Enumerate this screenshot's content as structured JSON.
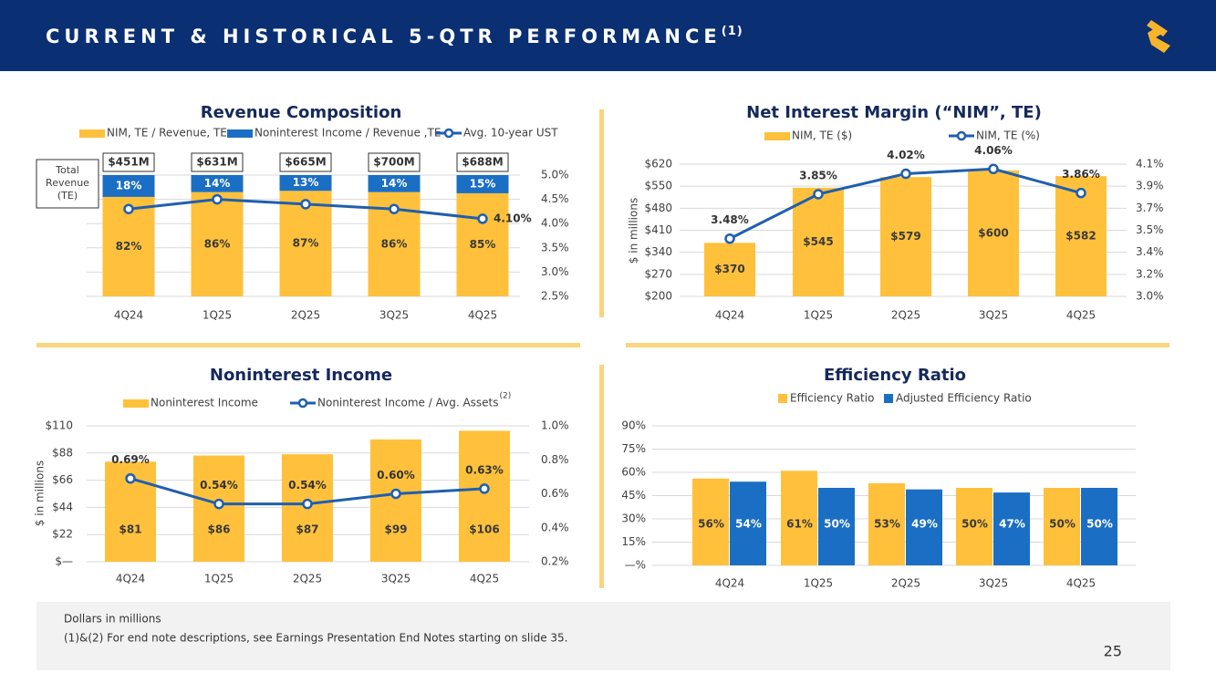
{
  "header": {
    "title": "CURRENT & HISTORICAL 5-QTR PERFORMANCE",
    "note": "(1)"
  },
  "chart_data": [
    {
      "type": "stacked_bar",
      "title": "Revenue Composition",
      "categories": [
        "4Q24",
        "1Q25",
        "2Q25",
        "3Q25",
        "4Q25"
      ],
      "ylim": [
        0,
        100
      ],
      "y2lim": [
        2.5,
        5.0
      ],
      "y2ticks": [
        {
          "value": 2.5,
          "label": "2.5%"
        },
        {
          "value": 3.0,
          "label": "3.0%"
        },
        {
          "value": 3.5,
          "label": "3.5%"
        },
        {
          "value": 4.0,
          "label": "4.0%"
        },
        {
          "value": 4.5,
          "label": "4.5%"
        },
        {
          "value": 5.0,
          "label": "5.0%"
        }
      ],
      "grid": true,
      "series": [
        {
          "name": "NIM, TE / Revenue, TE",
          "color": "#FFC13B",
          "values": [
            82,
            86,
            87,
            86,
            85
          ],
          "value_labels": [
            "82%",
            "86%",
            "87%",
            "86%",
            "85%"
          ]
        },
        {
          "name": "Noninterest Income / Revenue ,TE",
          "color": "#1A6FC4",
          "values": [
            18,
            14,
            13,
            14,
            15
          ],
          "value_labels": [
            "18%",
            "14%",
            "13%",
            "14%",
            "15%"
          ]
        },
        {
          "name": "Avg. 10-year UST",
          "color": "#1F5FAF",
          "type": "line",
          "axis": "y2",
          "values": [
            4.3,
            4.5,
            4.4,
            4.3,
            4.1
          ],
          "value_labels": [
            null,
            null,
            null,
            null,
            "4.10%"
          ]
        }
      ],
      "totals": {
        "label": [
          "Total",
          "Revenue",
          "(TE)"
        ],
        "values": [
          451,
          631,
          665,
          700,
          688
        ],
        "value_labels": [
          "$451M",
          "$631M",
          "$665M",
          "$700M",
          "$688M"
        ]
      }
    },
    {
      "type": "bar",
      "title": "Net Interest Margin (“NIM”, TE)",
      "ylabel": "$ in millions",
      "categories": [
        "4Q24",
        "1Q25",
        "2Q25",
        "3Q25",
        "4Q25"
      ],
      "ylim": [
        200,
        620
      ],
      "yticks": [
        {
          "value": 200,
          "label": "$200"
        },
        {
          "value": 270,
          "label": "$270"
        },
        {
          "value": 340,
          "label": "$340"
        },
        {
          "value": 410,
          "label": "$410"
        },
        {
          "value": 480,
          "label": "$480"
        },
        {
          "value": 550,
          "label": "$550"
        },
        {
          "value": 620,
          "label": "$620"
        }
      ],
      "y2lim": [
        3.0,
        4.1
      ],
      "y2ticks": [
        {
          "value": 3.0,
          "label": "3.0%"
        },
        {
          "value": 3.183,
          "label": "3.2%"
        },
        {
          "value": 3.367,
          "label": "3.4%"
        },
        {
          "value": 3.55,
          "label": "3.5%"
        },
        {
          "value": 3.733,
          "label": "3.7%"
        },
        {
          "value": 3.917,
          "label": "3.9%"
        },
        {
          "value": 4.1,
          "label": "4.1%"
        }
      ],
      "grid": true,
      "series": [
        {
          "name": "NIM, TE ($)",
          "color": "#FFC13B",
          "values": [
            370,
            545,
            579,
            600,
            582
          ],
          "value_labels": [
            "$370",
            "$545",
            "$579",
            "$600",
            "$582"
          ]
        },
        {
          "name": "NIM, TE (%)",
          "color": "#1F5FAF",
          "type": "line",
          "axis": "y2",
          "values": [
            3.48,
            3.85,
            4.02,
            4.06,
            3.86
          ],
          "value_labels": [
            "3.48%",
            "3.85%",
            "4.02%",
            "4.06%",
            "3.86%"
          ]
        }
      ]
    },
    {
      "type": "bar",
      "title": "Noninterest Income",
      "ylabel": "$ in millions",
      "categories": [
        "4Q24",
        "1Q25",
        "2Q25",
        "3Q25",
        "4Q25"
      ],
      "ylim": [
        0,
        110
      ],
      "yticks": [
        {
          "value": 0,
          "label": "$—"
        },
        {
          "value": 22,
          "label": "$22"
        },
        {
          "value": 44,
          "label": "$44"
        },
        {
          "value": 66,
          "label": "$66"
        },
        {
          "value": 88,
          "label": "$88"
        },
        {
          "value": 110,
          "label": "$110"
        }
      ],
      "y2lim": [
        0.2,
        1.0
      ],
      "y2ticks": [
        {
          "value": 0.2,
          "label": "0.2%"
        },
        {
          "value": 0.4,
          "label": "0.4%"
        },
        {
          "value": 0.6,
          "label": "0.6%"
        },
        {
          "value": 0.8,
          "label": "0.8%"
        },
        {
          "value": 1.0,
          "label": "1.0%"
        }
      ],
      "grid": true,
      "series": [
        {
          "name": "Noninterest Income",
          "color": "#FFC13B",
          "values": [
            81,
            86,
            87,
            99,
            106
          ],
          "value_labels": [
            "$81",
            "$86",
            "$87",
            "$99",
            "$106"
          ]
        },
        {
          "name": "Noninterest Income / Avg. Assets",
          "note": "(2)",
          "color": "#1F5FAF",
          "type": "line",
          "axis": "y2",
          "values": [
            0.69,
            0.54,
            0.54,
            0.6,
            0.63
          ],
          "value_labels": [
            "0.69%",
            "0.54%",
            "0.54%",
            "0.60%",
            "0.63%"
          ]
        }
      ]
    },
    {
      "type": "grouped_bar",
      "title": "Efficiency Ratio",
      "categories": [
        "4Q24",
        "1Q25",
        "2Q25",
        "3Q25",
        "4Q25"
      ],
      "ylim": [
        0,
        90
      ],
      "yticks": [
        {
          "value": 0,
          "label": "—%"
        },
        {
          "value": 15,
          "label": "15%"
        },
        {
          "value": 30,
          "label": "30%"
        },
        {
          "value": 45,
          "label": "45%"
        },
        {
          "value": 60,
          "label": "60%"
        },
        {
          "value": 75,
          "label": "75%"
        },
        {
          "value": 90,
          "label": "90%"
        }
      ],
      "grid": true,
      "series": [
        {
          "name": "Efficiency Ratio",
          "color": "#FFC13B",
          "values": [
            56,
            61,
            53,
            50,
            50
          ],
          "value_labels": [
            "56%",
            "61%",
            "53%",
            "50%",
            "50%"
          ]
        },
        {
          "name": "Adjusted Efficiency Ratio",
          "color": "#1A6FC4",
          "values": [
            54,
            50,
            49,
            47,
            50
          ],
          "value_labels": [
            "54%",
            "50%",
            "49%",
            "47%",
            "50%"
          ]
        }
      ]
    }
  ],
  "footer": {
    "lines": [
      "Dollars in millions",
      "(1)&(2)  For end note descriptions, see Earnings Presentation End Notes starting on slide 35."
    ],
    "page": "25"
  }
}
